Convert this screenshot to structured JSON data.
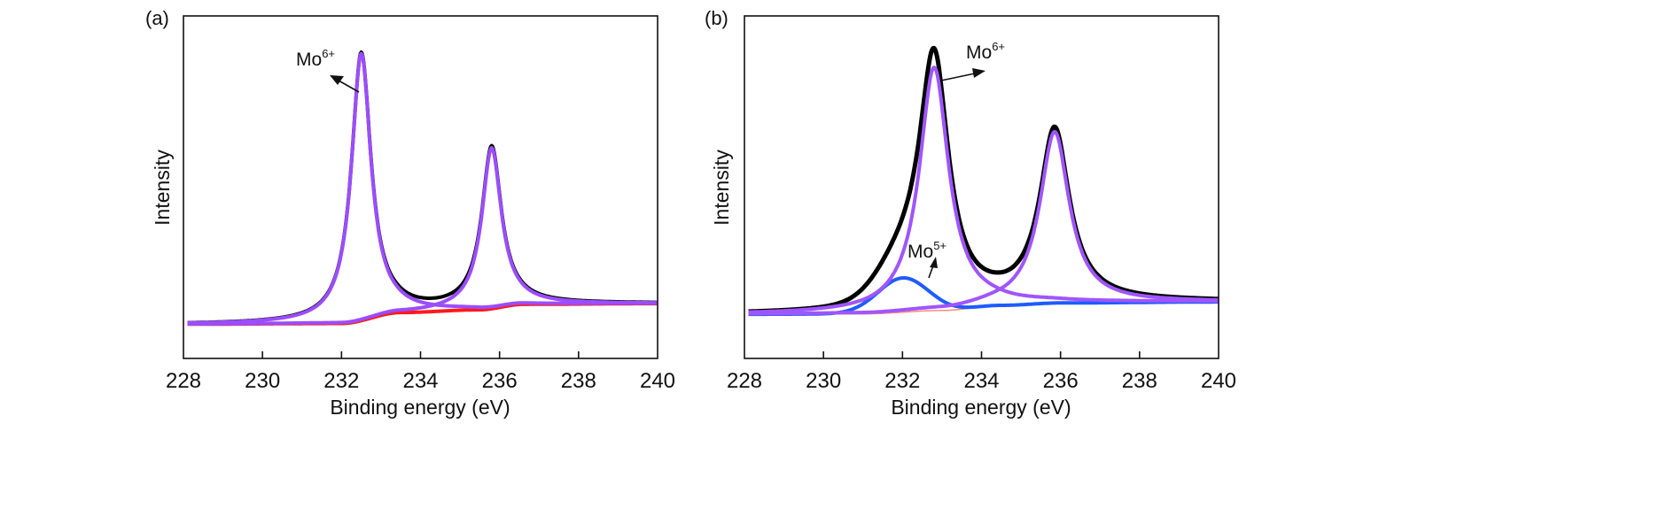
{
  "chart_data": [
    {
      "type": "line",
      "panel_label": "(a)",
      "xlabel": "Binding energy (eV)",
      "ylabel": "Intensity",
      "xlim": [
        228,
        240
      ],
      "ylim": [
        0,
        100
      ],
      "xticks": [
        "228",
        "230",
        "232",
        "234",
        "236",
        "238",
        "240"
      ],
      "yticks_shown": false,
      "grid": false,
      "x_range_plotted": [
        228.1,
        240
      ],
      "background": {
        "color": "#ff1a1a",
        "points": [
          [
            228.1,
            10
          ],
          [
            232,
            10.2
          ],
          [
            233.5,
            13.4
          ],
          [
            235.5,
            14.2
          ],
          [
            236.6,
            15.8
          ],
          [
            240,
            16
          ]
        ]
      },
      "components": [
        {
          "color": "#9b4dff",
          "center": 232.5,
          "height": 78,
          "fwhm": 0.6
        },
        {
          "color": "#9b4dff",
          "center": 235.8,
          "height": 47,
          "fwhm": 0.6
        }
      ],
      "envelope_color": "#000000",
      "annotations": [
        {
          "base": "Mo",
          "sup": "6+",
          "target_x": 232.5
        }
      ]
    },
    {
      "type": "line",
      "panel_label": "(b)",
      "xlabel": "Binding energy (eV)",
      "ylabel": "Intensity",
      "xlim": [
        228,
        240
      ],
      "ylim": [
        0,
        100
      ],
      "xticks": [
        "228",
        "230",
        "232",
        "234",
        "236",
        "238",
        "240"
      ],
      "yticks_shown": false,
      "grid": false,
      "x_range_plotted": [
        228.1,
        240
      ],
      "background": {
        "color": "#ff8a7a",
        "points": [
          [
            228.1,
            12.9
          ],
          [
            231,
            13
          ],
          [
            233,
            14
          ],
          [
            234.5,
            15.5
          ],
          [
            236,
            16.2
          ],
          [
            240,
            16.5
          ]
        ]
      },
      "components": [
        {
          "color": "#1e5cff",
          "center": 232.0,
          "height": 10,
          "fwhm": 1.5,
          "shape": "gaussian"
        },
        {
          "color": "#a055ff",
          "center": 232.8,
          "height": 71,
          "fwhm": 0.9
        },
        {
          "color": "#a055ff",
          "center": 235.85,
          "height": 50,
          "fwhm": 0.9
        }
      ],
      "envelope_color": "#000000",
      "annotations": [
        {
          "base": "Mo",
          "sup": "6+",
          "target_x": 232.8
        },
        {
          "base": "Mo",
          "sup": "5+",
          "target_x": 232.0
        }
      ]
    }
  ]
}
